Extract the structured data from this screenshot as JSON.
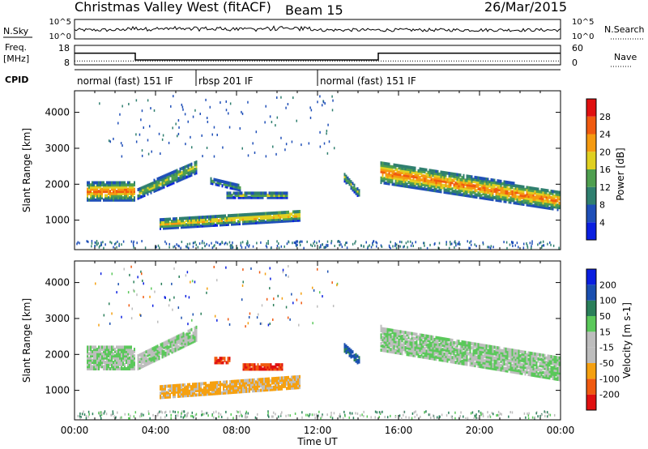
{
  "header": {
    "station": "Christmas Valley West (fitACF)",
    "beam": "Beam 15",
    "date": "26/Mar/2015"
  },
  "nsky": {
    "label": "N.Sky",
    "ticks": [
      "10^5",
      "10^0"
    ],
    "right_ticks": [
      "10^5",
      "10^0"
    ],
    "right_label": "N.Search"
  },
  "freq": {
    "label_line1": "Freq.",
    "label_line2": "[MHz]",
    "ticks": [
      "18",
      "8"
    ],
    "right_ticks": [
      "60",
      "0"
    ],
    "right_label": "Nave",
    "freq_steps": [
      {
        "start": 0,
        "end": 3,
        "value": 14
      },
      {
        "start": 3,
        "end": 15,
        "value": 10.5
      },
      {
        "start": 15,
        "end": 24,
        "value": 14
      }
    ],
    "nave_level": 12
  },
  "cpid": {
    "label": "CPID",
    "segments": [
      {
        "start": 0,
        "end": 6,
        "label": "normal (fast) 151 IF"
      },
      {
        "start": 6,
        "end": 12,
        "label": "rbsp 201 IF"
      },
      {
        "start": 12,
        "end": 24,
        "label": "normal (fast) 151 IF"
      }
    ]
  },
  "chart_data": [
    {
      "type": "heatmap",
      "name": "power",
      "ylabel": "Slant Range [km]",
      "yticks": [
        1000,
        2000,
        3000,
        4000
      ],
      "ylim": [
        180,
        4600
      ],
      "xlim": [
        0,
        24
      ],
      "colorbar": {
        "label": "Power [dB]",
        "ticks": [
          "4",
          "8",
          "12",
          "16",
          "20",
          "24",
          "28"
        ],
        "colors": [
          "#0a1fe0",
          "#1f4fb8",
          "#2f7f6f",
          "#4f9f4f",
          "#e0d020",
          "#f59a10",
          "#f05a10",
          "#e01010"
        ]
      },
      "bands": [
        {
          "x": [
            0.6,
            2.95
          ],
          "center": [
            1800,
            1820
          ],
          "half": [
            240,
            260
          ],
          "peak": 26
        },
        {
          "x": [
            3.1,
            6.0
          ],
          "center": [
            1750,
            2500
          ],
          "half": [
            140,
            180
          ],
          "peak": 18
        },
        {
          "x": [
            4.2,
            11.1
          ],
          "center": [
            900,
            1150
          ],
          "half": [
            130,
            150
          ],
          "peak": 22
        },
        {
          "x": [
            6.7,
            8.2
          ],
          "center": [
            2100,
            1900
          ],
          "half": [
            70,
            70
          ],
          "peak": 14
        },
        {
          "x": [
            7.5,
            10.5
          ],
          "center": [
            1700,
            1700
          ],
          "half": [
            70,
            70
          ],
          "peak": 16
        },
        {
          "x": [
            13.3,
            14.1
          ],
          "center": [
            2200,
            1700
          ],
          "half": [
            110,
            110
          ],
          "peak": 16
        },
        {
          "x": [
            15.1,
            23.9
          ],
          "center": [
            2350,
            1550
          ],
          "half": [
            300,
            260
          ],
          "peak": 26
        }
      ]
    },
    {
      "type": "heatmap",
      "name": "velocity",
      "ylabel": "Slant Range [km]",
      "yticks": [
        1000,
        2000,
        3000,
        4000
      ],
      "ylim": [
        180,
        4600
      ],
      "xlim": [
        0,
        24
      ],
      "xticks": [
        "00:00",
        "04:00",
        "08:00",
        "12:00",
        "16:00",
        "20:00",
        "00:00"
      ],
      "xlabel": "Time UT",
      "colorbar": {
        "label": "Velocity [m s-1]",
        "ticks": [
          "-200",
          "-100",
          "-50",
          "-15",
          "15",
          "50",
          "100",
          "200"
        ],
        "colors": [
          "#e01010",
          "#f05a10",
          "#f5a010",
          "#bdbdbd",
          "#bdbdbd",
          "#5ac85a",
          "#2a7f5a",
          "#1a4fb0",
          "#0a1fe0"
        ]
      },
      "bands": [
        {
          "x": [
            0.6,
            2.95
          ],
          "center": [
            1900,
            1900
          ],
          "half": [
            300,
            300
          ],
          "value": 0
        },
        {
          "x": [
            3.1,
            6.0
          ],
          "center": [
            1800,
            2600
          ],
          "half": [
            200,
            200
          ],
          "value": 0
        },
        {
          "x": [
            4.2,
            11.1
          ],
          "center": [
            950,
            1250
          ],
          "half": [
            150,
            170
          ],
          "value": -60
        },
        {
          "x": [
            6.9,
            7.7
          ],
          "center": [
            1850,
            1850
          ],
          "half": [
            80,
            80
          ],
          "value": -200
        },
        {
          "x": [
            8.3,
            10.3
          ],
          "center": [
            1650,
            1650
          ],
          "half": [
            60,
            60
          ],
          "value": -200
        },
        {
          "x": [
            13.3,
            14.1
          ],
          "center": [
            2200,
            1800
          ],
          "half": [
            110,
            110
          ],
          "value": 60
        },
        {
          "x": [
            15.1,
            23.9
          ],
          "center": [
            2450,
            1600
          ],
          "half": [
            330,
            300
          ],
          "value": 0
        }
      ]
    }
  ]
}
